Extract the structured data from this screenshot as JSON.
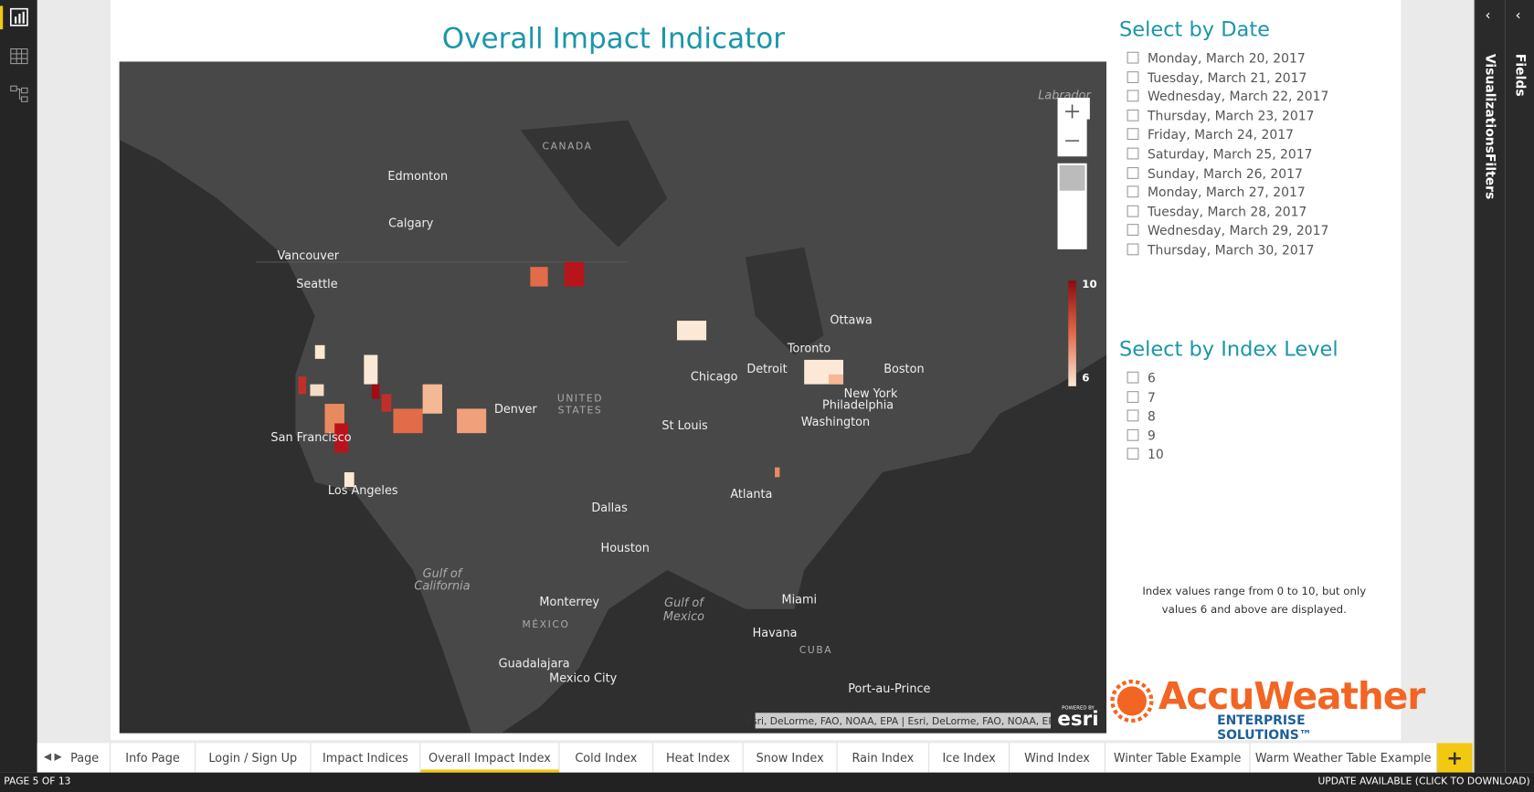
{
  "header": {
    "title": "Overall Impact Indicator"
  },
  "map": {
    "labels": [
      "Labrador",
      "CANADA",
      "Edmonton",
      "Calgary",
      "Vancouver",
      "Seattle",
      "San Francisco",
      "Los Angeles",
      "Denver",
      "UNITED",
      "STATES",
      "Chicago",
      "Detroit",
      "Toronto",
      "Ottawa",
      "Boston",
      "New York",
      "Philadelphia",
      "Washington",
      "St Louis",
      "Atlanta",
      "Dallas",
      "Houston",
      "Gulf of",
      "California",
      "Monterrey",
      "Gulf of",
      "Mexico",
      "MÉXICO",
      "Miami",
      "Havana",
      "CUBA",
      "Guadalajara",
      "Mexico City",
      "Port-au-Prince"
    ],
    "legend": {
      "max": 10,
      "min": 6
    },
    "attribution": "Esri, DeLorme, FAO, NOAA, EPA | Esri, DeLorme, FAO, NOAA, EPA",
    "powered_by": "POWERED BY",
    "brand": "esri"
  },
  "date_slicer": {
    "title": "Select by Date",
    "options": [
      "Monday, March 20, 2017",
      "Tuesday, March 21, 2017",
      "Wednesday, March 22, 2017",
      "Thursday, March 23, 2017",
      "Friday, March 24, 2017",
      "Saturday, March 25, 2017",
      "Sunday, March 26, 2017",
      "Monday, March 27, 2017",
      "Tuesday, March 28, 2017",
      "Wednesday, March 29, 2017",
      "Thursday, March 30, 2017"
    ]
  },
  "index_slicer": {
    "title": "Select by Index Level",
    "options": [
      "6",
      "7",
      "8",
      "9",
      "10"
    ]
  },
  "note": "Index values range from 0 to 10, but only values 6 and above are displayed.",
  "logo": {
    "name": "AccuWeather",
    "tagline": "ENTERPRISE SOLUTIONS™"
  },
  "tabs": {
    "items": [
      "Page",
      "Info Page",
      "Login / Sign Up",
      "Impact Indices",
      "Overall Impact Index",
      "Cold Index",
      "Heat Index",
      "Snow Index",
      "Rain Index",
      "Ice Index",
      "Wind Index",
      "Winter Table Example",
      "Warm Weather Table Example"
    ],
    "active": 4,
    "add": "+"
  },
  "status": {
    "page": "PAGE 5 OF 13",
    "update": "UPDATE AVAILABLE (CLICK TO DOWNLOAD)"
  },
  "panes": [
    "Visualizations",
    "Filters",
    "Fields"
  ]
}
